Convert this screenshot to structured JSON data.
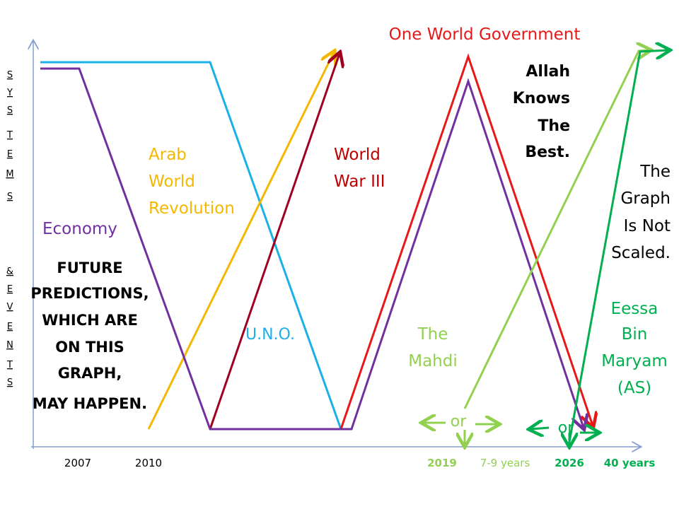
{
  "title": "One World Government",
  "vertical_label": [
    "S",
    "Y",
    "S",
    "T",
    "E",
    "M",
    "S",
    "&",
    "E",
    "V",
    "E",
    "N",
    "T",
    "S"
  ],
  "note_allah": [
    "Allah",
    "Knows",
    "The",
    "Best."
  ],
  "note_scale": [
    "The",
    "Graph",
    "Is Not",
    "Scaled."
  ],
  "eessa": [
    "Eessa",
    "Bin",
    "Maryam",
    "(AS)"
  ],
  "economy": "Economy",
  "predictions": [
    "FUTURE",
    "PREDICTIONS,",
    "WHICH ARE",
    "ON THIS",
    "GRAPH,",
    "MAY HAPPEN."
  ],
  "arab": [
    "Arab",
    "World",
    "Revolution"
  ],
  "ww3": [
    "World",
    "War III"
  ],
  "uno": "U.N.O.",
  "mahdi": [
    "The",
    "Mahdi"
  ],
  "or_1": "or",
  "or_2": "or",
  "axis_labels": [
    "2007",
    "2010",
    "2019",
    "7-9 years",
    "2026",
    "40 years"
  ]
}
